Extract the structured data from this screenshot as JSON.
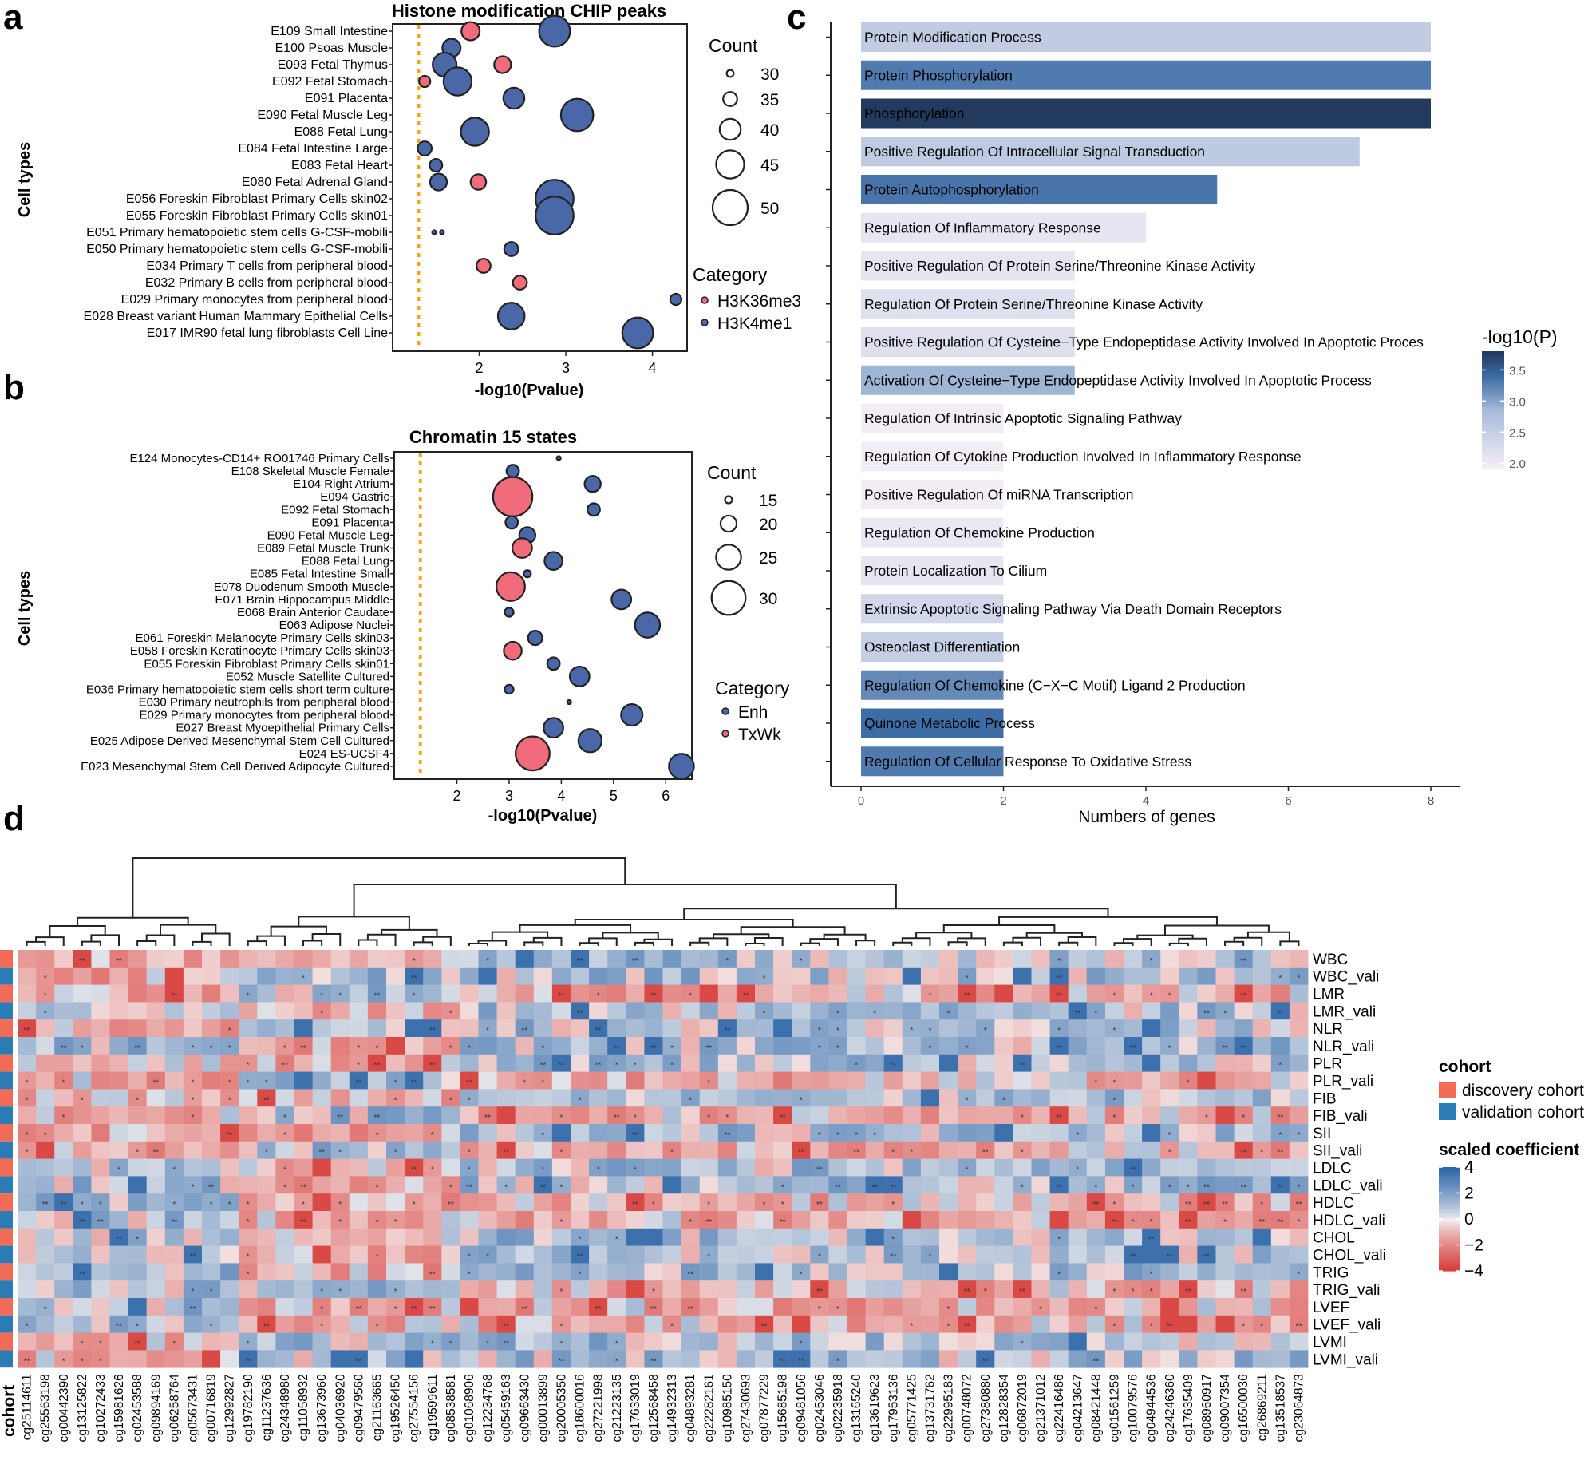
{
  "panel_letters": [
    "a",
    "b",
    "c",
    "d"
  ],
  "colors": {
    "red": "#f26b7a",
    "blue": "#4a68a8",
    "orange": "#f5a623",
    "discovery": "#f26b57",
    "validation": "#2b7bb5"
  },
  "chart_data": [
    {
      "id": "a",
      "type": "scatter",
      "title": "Histone modification CHIP peaks",
      "xlabel": "-log10(Pvalue)",
      "ylabel": "Cell types",
      "xlim": [
        1.0,
        4.4
      ],
      "xticks": [
        2,
        3,
        4
      ],
      "threshold": 1.3,
      "rows": [
        "E109 Small Intestine",
        "E100 Psoas Muscle",
        "E093 Fetal Thymus",
        "E092 Fetal Stomach",
        "E091 Placenta",
        "E090 Fetal Muscle Leg",
        "E088 Fetal Lung",
        "E084 Fetal Intestine Large",
        "E083 Fetal Heart",
        "E080 Fetal Adrenal Gland",
        "E056 Foreskin Fibroblast Primary Cells skin02",
        "E055 Foreskin Fibroblast Primary Cells skin01",
        "E051 Primary hematopoietic stem cells G-CSF-mobili",
        "E050 Primary hematopoietic stem cells G-CSF-mobili",
        "E034 Primary T cells from peripheral blood",
        "E032 Primary B cells from peripheral blood",
        "E029 Primary monocytes from peripheral blood",
        "E028 Breast variant Human Mammary Epithelial Cells",
        "E017 IMR90 fetal lung fibroblasts Cell Line"
      ],
      "points": [
        {
          "row": 0,
          "x": 1.9,
          "count": 38,
          "category": "H3K36me3"
        },
        {
          "row": 0,
          "x": 2.87,
          "count": 47,
          "category": "H3K4me1"
        },
        {
          "row": 1,
          "x": 1.68,
          "count": 38,
          "category": "H3K4me1"
        },
        {
          "row": 2,
          "x": 1.6,
          "count": 42,
          "category": "H3K4me1"
        },
        {
          "row": 2,
          "x": 2.27,
          "count": 37,
          "category": "H3K36me3"
        },
        {
          "row": 3,
          "x": 1.37,
          "count": 33,
          "category": "H3K36me3"
        },
        {
          "row": 3,
          "x": 1.75,
          "count": 45,
          "category": "H3K4me1"
        },
        {
          "row": 4,
          "x": 2.4,
          "count": 40,
          "category": "H3K4me1"
        },
        {
          "row": 5,
          "x": 3.13,
          "count": 48,
          "category": "H3K4me1"
        },
        {
          "row": 6,
          "x": 1.95,
          "count": 45,
          "category": "H3K4me1"
        },
        {
          "row": 7,
          "x": 1.37,
          "count": 35,
          "category": "H3K4me1"
        },
        {
          "row": 8,
          "x": 1.5,
          "count": 34,
          "category": "H3K4me1"
        },
        {
          "row": 9,
          "x": 1.99,
          "count": 36,
          "category": "H3K36me3"
        },
        {
          "row": 9,
          "x": 1.53,
          "count": 37,
          "category": "H3K4me1"
        },
        {
          "row": 10,
          "x": 2.87,
          "count": 52,
          "category": "H3K4me1"
        },
        {
          "row": 11,
          "x": 2.87,
          "count": 52,
          "category": "H3K4me1"
        },
        {
          "row": 12,
          "x": 1.48,
          "count": 27,
          "category": "H3K4me1"
        },
        {
          "row": 12,
          "x": 1.57,
          "count": 27,
          "category": "H3K4me1"
        },
        {
          "row": 13,
          "x": 2.37,
          "count": 35,
          "category": "H3K4me1"
        },
        {
          "row": 14,
          "x": 2.05,
          "count": 35,
          "category": "H3K36me3"
        },
        {
          "row": 15,
          "x": 2.47,
          "count": 35,
          "category": "H3K36me3"
        },
        {
          "row": 16,
          "x": 4.27,
          "count": 33,
          "category": "H3K4me1"
        },
        {
          "row": 17,
          "x": 2.37,
          "count": 44,
          "category": "H3K4me1"
        },
        {
          "row": 18,
          "x": 3.83,
          "count": 47,
          "category": "H3K4me1"
        }
      ],
      "size_legend": {
        "title": "Count",
        "values": [
          30,
          35,
          40,
          45,
          50
        ],
        "labels": [
          "30",
          "35",
          "40",
          "45",
          "50"
        ]
      },
      "category_legend": {
        "title": "Category",
        "labels": [
          "H3K36me3",
          "H3K4me1"
        ]
      }
    },
    {
      "id": "b",
      "type": "scatter",
      "title": "Chromatin 15 states",
      "xlabel": "-log10(Pvalue)",
      "ylabel": "Cell types",
      "xlim": [
        0.8,
        6.5
      ],
      "xticks": [
        2,
        3,
        4,
        5,
        6
      ],
      "threshold": 1.3,
      "rows": [
        "E124 Monocytes-CD14+ RO01746 Primary Cells",
        "E108 Skeletal Muscle Female",
        "E104 Right Atrium",
        "E094 Gastric",
        "E092 Fetal Stomach",
        "E091 Placenta",
        "E090 Fetal Muscle Leg",
        "E089 Fetal Muscle Trunk",
        "E088 Fetal Lung",
        "E085 Fetal Intestine Small",
        "E078 Duodenum Smooth Muscle",
        "E071 Brain Hippocampus Middle",
        "E068 Brain Anterior Caudate",
        "E063 Adipose Nuclei",
        "E061 Foreskin Melanocyte Primary Cells skin03",
        "E058 Foreskin Keratinocyte Primary Cells skin03",
        "E055 Foreskin Fibroblast Primary Cells skin01",
        "E052 Muscle Satellite Cultured",
        "E036 Primary hematopoietic stem cells short term culture",
        "E030 Primary neutrophils from peripheral blood",
        "E029 Primary monocytes from peripheral blood",
        "E027 Breast Myoepithelial Primary Cells",
        "E025 Adipose Derived Mesenchymal Stem Cell Cultured",
        "E024 ES-UCSF4",
        "E023 Mesenchymal Stem Cell Derived Adipocyte Cultured"
      ],
      "points": [
        {
          "row": 0,
          "x": 3.95,
          "count": 12,
          "category": "Enh"
        },
        {
          "row": 1,
          "x": 3.07,
          "count": 18,
          "category": "Enh"
        },
        {
          "row": 2,
          "x": 4.6,
          "count": 20,
          "category": "Enh"
        },
        {
          "row": 3,
          "x": 3.07,
          "count": 33,
          "category": "TxWk"
        },
        {
          "row": 4,
          "x": 4.62,
          "count": 18,
          "category": "Enh"
        },
        {
          "row": 5,
          "x": 3.05,
          "count": 18,
          "category": "Enh"
        },
        {
          "row": 6,
          "x": 3.35,
          "count": 20,
          "category": "Enh"
        },
        {
          "row": 7,
          "x": 3.25,
          "count": 22,
          "category": "TxWk"
        },
        {
          "row": 8,
          "x": 3.85,
          "count": 21,
          "category": "Enh"
        },
        {
          "row": 9,
          "x": 3.35,
          "count": 15,
          "category": "Enh"
        },
        {
          "row": 10,
          "x": 3.03,
          "count": 27,
          "category": "TxWk"
        },
        {
          "row": 11,
          "x": 5.15,
          "count": 22,
          "category": "Enh"
        },
        {
          "row": 12,
          "x": 3.0,
          "count": 16,
          "category": "Enh"
        },
        {
          "row": 13,
          "x": 5.65,
          "count": 25,
          "category": "Enh"
        },
        {
          "row": 14,
          "x": 3.5,
          "count": 19,
          "category": "Enh"
        },
        {
          "row": 15,
          "x": 3.07,
          "count": 21,
          "category": "TxWk"
        },
        {
          "row": 16,
          "x": 3.85,
          "count": 18,
          "category": "Enh"
        },
        {
          "row": 17,
          "x": 4.35,
          "count": 22,
          "category": "Enh"
        },
        {
          "row": 18,
          "x": 3.0,
          "count": 16,
          "category": "Enh"
        },
        {
          "row": 19,
          "x": 4.15,
          "count": 13,
          "category": "Enh"
        },
        {
          "row": 20,
          "x": 5.35,
          "count": 23,
          "category": "Enh"
        },
        {
          "row": 21,
          "x": 3.85,
          "count": 22,
          "category": "Enh"
        },
        {
          "row": 22,
          "x": 4.55,
          "count": 24,
          "category": "Enh"
        },
        {
          "row": 23,
          "x": 3.45,
          "count": 30,
          "category": "TxWk"
        },
        {
          "row": 24,
          "x": 6.3,
          "count": 25,
          "category": "Enh"
        }
      ],
      "size_legend": {
        "title": "Count",
        "values": [
          15,
          20,
          25,
          30
        ],
        "labels": [
          "15",
          "20",
          "25",
          "30"
        ]
      },
      "category_legend": {
        "title": "Category",
        "labels": [
          "Enh",
          "TxWk"
        ]
      }
    },
    {
      "id": "c",
      "type": "bar",
      "orientation": "horizontal",
      "xlabel": "Numbers of genes",
      "xlim": [
        0,
        8.2
      ],
      "xticks": [
        0,
        2,
        4,
        6,
        8
      ],
      "color_title": "-log10(P)",
      "color_ticks": [
        2.0,
        2.5,
        3.0,
        3.5
      ],
      "color_tick_labels": [
        "2.0",
        "2.5",
        "3.0",
        "3.5"
      ],
      "color_range": [
        1.9,
        3.8
      ],
      "categories": [
        "Protein Modification Process",
        "Protein Phosphorylation",
        "Phosphorylation",
        "Positive Regulation Of Intracellular Signal Transduction",
        "Protein Autophosphorylation",
        "Regulation Of Inflammatory Response",
        "Positive Regulation Of Protein Serine/Threonine Kinase Activity",
        "Regulation Of Protein Serine/Threonine Kinase Activity",
        "Positive Regulation Of Cysteine−Type Endopeptidase Activity Involved In Apoptotic Proces",
        "Activation Of Cysteine−Type Endopeptidase Activity Involved In Apoptotic Process",
        "Regulation Of Intrinsic Apoptotic Signaling Pathway",
        "Regulation Of Cytokine Production Involved In Inflammatory Response",
        "Positive Regulation Of miRNA Transcription",
        "Regulation Of Chemokine Production",
        "Protein Localization To Cilium",
        "Extrinsic Apoptotic Signaling Pathway Via Death Domain Receptors",
        "Osteoclast Differentiation",
        "Regulation Of Chemokine (C−X−C Motif) Ligand 2 Production",
        "Quinone Metabolic Process",
        "Regulation Of Cellular Response To Oxidative Stress"
      ],
      "values": [
        8,
        8,
        8,
        7,
        5,
        4,
        3,
        3,
        3,
        3,
        2,
        2,
        2,
        2,
        2,
        2,
        2,
        2,
        2,
        2
      ],
      "neglog10p": [
        2.55,
        3.3,
        3.85,
        2.6,
        3.35,
        2.1,
        2.1,
        2.2,
        2.2,
        2.9,
        1.95,
        1.95,
        1.95,
        2.05,
        2.1,
        2.35,
        2.5,
        3.2,
        3.4,
        3.3
      ]
    },
    {
      "id": "d",
      "type": "heatmap",
      "rows": [
        "WBC",
        "WBC_vali",
        "LMR",
        "LMR_vali",
        "NLR",
        "NLR_vali",
        "PLR",
        "PLR_vali",
        "FIB",
        "FIB_vali",
        "SII",
        "SII_vali",
        "LDLC",
        "LDLC_vali",
        "HDLC",
        "HDLC_vali",
        "CHOL",
        "CHOL_vali",
        "TRIG",
        "TRIG_vali",
        "LVEF",
        "LVEF_vali",
        "LVMI",
        "LVMI_vali"
      ],
      "columns": [
        "cg25114611",
        "cg25563198",
        "cg00442390",
        "cg13125822",
        "cg10272433",
        "cg15981626",
        "cg02453588",
        "cg09894169",
        "cg06258764",
        "cg05673431",
        "cg00716819",
        "cg12992827",
        "cg19782190",
        "cg11237636",
        "cg24348980",
        "cg11058932",
        "cg13673960",
        "cg04036920",
        "cg09479560",
        "cg21163665",
        "cg19526450",
        "cg27554156",
        "cg19599611",
        "cg08538581",
        "cg01068906",
        "cg12234768",
        "cg05459163",
        "cg09663430",
        "cg00013899",
        "cg20005350",
        "cg18600016",
        "cg27221998",
        "cg21223135",
        "cg17633019",
        "cg12568458",
        "cg14932313",
        "cg04893281",
        "cg22282161",
        "cg10985150",
        "cg27430693",
        "cg07877229",
        "cg15685198",
        "cg09481056",
        "cg02453046",
        "cg02235918",
        "cg13165240",
        "cg13619623",
        "cg17953136",
        "cg05771425",
        "cg13731762",
        "cg22995183",
        "cg00748072",
        "cg27380880",
        "cg12828354",
        "cg06872019",
        "cg21371012",
        "cg22416486",
        "cg04213647",
        "cg08421448",
        "cg01561259",
        "cg10079576",
        "cg04944536",
        "cg24246360",
        "cg17635409",
        "cg08960917",
        "cg09007354",
        "cg16500036",
        "cg26869211",
        "cg13518537",
        "cg23064873"
      ],
      "row_cohort": [
        "discovery",
        "validation",
        "discovery",
        "validation",
        "discovery",
        "validation",
        "discovery",
        "validation",
        "discovery",
        "validation",
        "discovery",
        "validation",
        "discovery",
        "validation",
        "discovery",
        "validation",
        "discovery",
        "validation",
        "discovery",
        "validation",
        "discovery",
        "validation",
        "discovery",
        "validation"
      ],
      "col_groups": [
        12,
        24,
        34
      ],
      "group_sign": [
        [
          -1,
          -1,
          1
        ],
        [
          -1,
          1,
          1
        ],
        [
          -1,
          1,
          -1
        ],
        [
          1,
          -1,
          1
        ],
        [
          -1,
          1,
          1
        ],
        [
          1,
          -1,
          1
        ],
        [
          -1,
          -1,
          1
        ],
        [
          -1,
          1,
          -1
        ],
        [
          -1,
          -1,
          1
        ],
        [
          -1,
          1,
          -1
        ],
        [
          -1,
          -1,
          1
        ],
        [
          -1,
          1,
          -1
        ],
        [
          1,
          -1,
          1
        ],
        [
          1,
          -1,
          1
        ],
        [
          1,
          -1,
          -1
        ],
        [
          1,
          -1,
          -1
        ],
        [
          1,
          -1,
          1
        ],
        [
          1,
          -1,
          1
        ],
        [
          1,
          -1,
          1
        ],
        [
          1,
          1,
          -1
        ],
        [
          1,
          -1,
          -1
        ],
        [
          1,
          -1,
          -1
        ],
        [
          -1,
          1,
          1
        ],
        [
          -1,
          1,
          1
        ]
      ],
      "color_scale": {
        "min": -4,
        "max": 4,
        "ticks": [
          4,
          2,
          0,
          -2,
          -4
        ],
        "tick_labels": [
          "4",
          "2",
          "0",
          "−2",
          "−4"
        ]
      },
      "cohort_label": "cohort",
      "legend_title": "cohort",
      "legend_items": [
        "discovery cohort",
        "validation cohort"
      ],
      "scale_title": "scaled coefficient"
    }
  ]
}
